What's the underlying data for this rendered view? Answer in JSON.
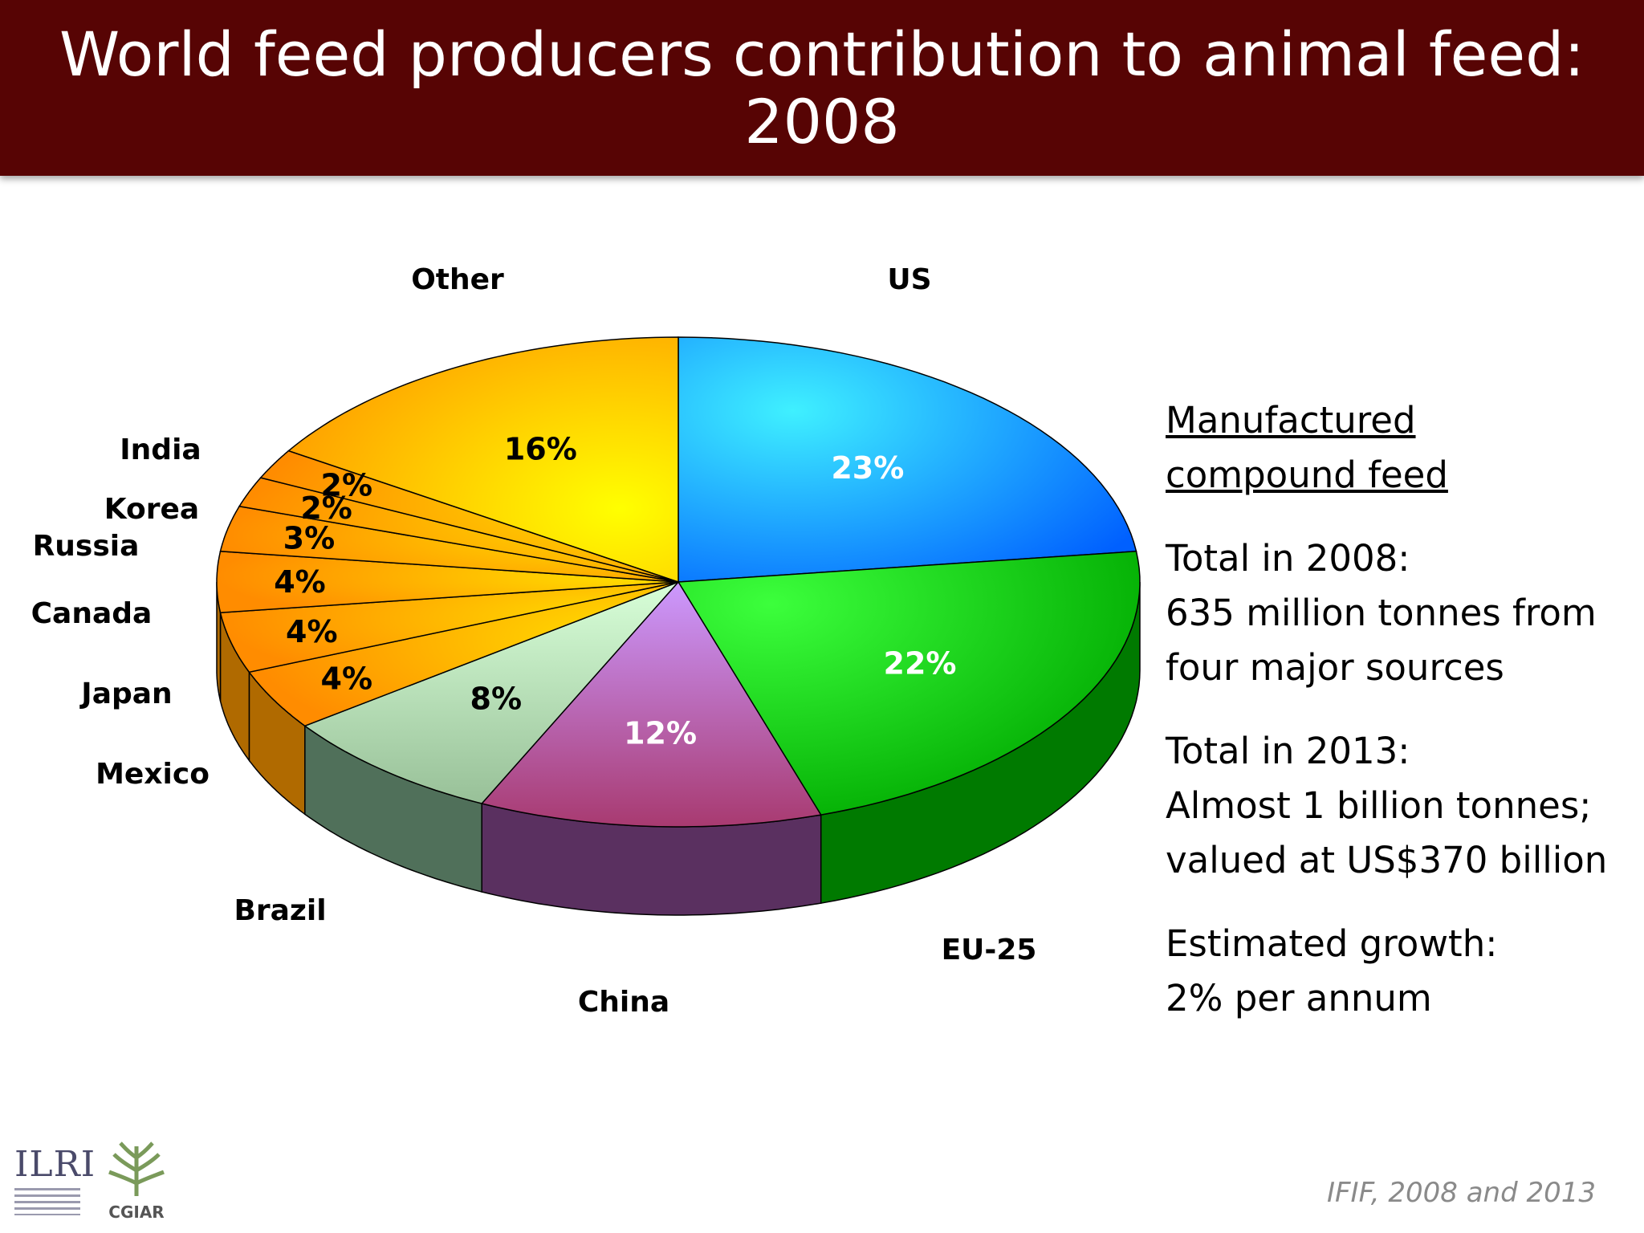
{
  "title": "World feed producers contribution to animal feed: 2008",
  "chart_data": {
    "type": "pie",
    "title": "World feed producers contribution to animal feed: 2008",
    "unit": "%",
    "slices": [
      {
        "label": "US",
        "value": 23,
        "value_label": "23%",
        "color": "#1e90ff"
      },
      {
        "label": "EU-25",
        "value": 22,
        "value_label": "22%",
        "color": "#11c811"
      },
      {
        "label": "China",
        "value": 12,
        "value_label": "12%",
        "color": "#b070c8"
      },
      {
        "label": "Brazil",
        "value": 8,
        "value_label": "8%",
        "color": "#a8d8a8"
      },
      {
        "label": "Mexico",
        "value": 4,
        "value_label": "4%",
        "color": "#ffb000"
      },
      {
        "label": "Japan",
        "value": 4,
        "value_label": "4%",
        "color": "#ffb000"
      },
      {
        "label": "Canada",
        "value": 4,
        "value_label": "4%",
        "color": "#ffb000"
      },
      {
        "label": "Russia",
        "value": 3,
        "value_label": "3%",
        "color": "#ffb000"
      },
      {
        "label": "Korea",
        "value": 2,
        "value_label": "2%",
        "color": "#ffb000"
      },
      {
        "label": "India",
        "value": 2,
        "value_label": "2%",
        "color": "#ffb000"
      },
      {
        "label": "Other",
        "value": 16,
        "value_label": "16%",
        "color": "#ffc000"
      }
    ]
  },
  "side_panel": {
    "heading_line1": "Manufactured",
    "heading_line2": "compound feed",
    "total_2008_label": "Total in 2008:",
    "total_2008_line1": "635 million tonnes from",
    "total_2008_line2": "four major sources",
    "total_2013_label": "Total in 2013:",
    "total_2013_line1": "Almost  1 billion tonnes;",
    "total_2013_line2": "valued at US$370 billion",
    "growth_label": "Estimated growth:",
    "growth_value": "2% per annum"
  },
  "source": "IFIF, 2008 and 2013",
  "logos": {
    "ilri": "ILRI",
    "cgiar": "CGIAR"
  }
}
